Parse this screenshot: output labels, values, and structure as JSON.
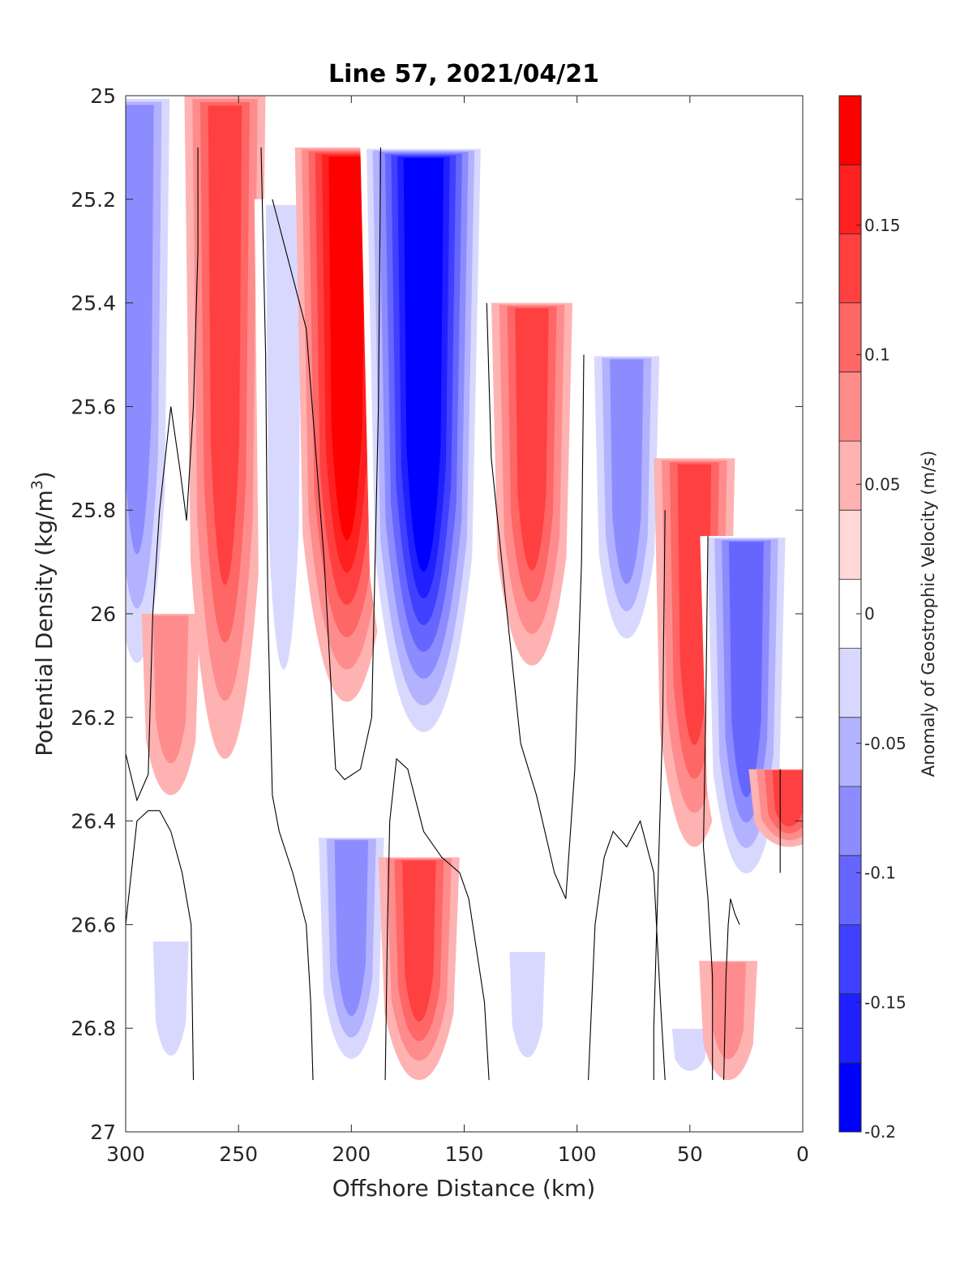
{
  "chart_data": {
    "type": "heatmap",
    "subtype": "filled-contour section",
    "title": "Line 57, 2021/04/21",
    "xlabel": "Offshore Distance (km)",
    "ylabel": "Potential Density (kg/m",
    "ylabel_superscript": "3",
    "ylabel_suffix": ")",
    "xlim": [
      300,
      0
    ],
    "x_reversed": true,
    "ylim": [
      25,
      27
    ],
    "y_reversed": true,
    "xticks": [
      300,
      250,
      200,
      150,
      100,
      50,
      0
    ],
    "xticklabels": [
      "300",
      "250",
      "200",
      "150",
      "100",
      "50",
      "0"
    ],
    "yticks": [
      25,
      25.2,
      25.4,
      25.6,
      25.8,
      26,
      26.2,
      26.4,
      26.6,
      26.8,
      27
    ],
    "yticklabels": [
      "25",
      "25.2",
      "25.4",
      "25.6",
      "25.8",
      "26",
      "26.2",
      "26.4",
      "26.6",
      "26.8",
      "27"
    ],
    "grid": false,
    "colorbar": {
      "label": "Anomaly of Geostrophic Velocity (m/s)",
      "range": [
        -0.2,
        0.2
      ],
      "level_step": 0.025,
      "ticks": [
        0.15,
        0.1,
        0.05,
        0,
        -0.05,
        -0.1,
        -0.15,
        -0.2
      ],
      "ticklabels": [
        "0.15",
        "0.1",
        "0.05",
        "0",
        "-0.05",
        "-0.1",
        "-0.15",
        "-0.2"
      ],
      "colors": [
        "#0000ff",
        "#2020ff",
        "#4040ff",
        "#6666ff",
        "#8c8cff",
        "#b2b2ff",
        "#d8d8ff",
        "#ffffff",
        "#ffd8d8",
        "#ffb2b2",
        "#ff8c8c",
        "#ff6666",
        "#ff4040",
        "#ff2020",
        "#ff0000"
      ]
    },
    "cores": [
      {
        "x": 295,
        "y_top": 25.0,
        "y_bottom": 26.2,
        "peak": -0.08
      },
      {
        "x": 256,
        "y_top": 25.0,
        "y_bottom": 26.28,
        "peak": 0.1
      },
      {
        "x": 280,
        "y_top": 26.0,
        "y_bottom": 26.35,
        "peak": 0.05
      },
      {
        "x": 230,
        "y_top": 25.2,
        "y_bottom": 26.3,
        "peak": -0.05
      },
      {
        "x": 202,
        "y_top": 25.1,
        "y_bottom": 26.17,
        "peak": 0.19
      },
      {
        "x": 168,
        "y_top": 25.1,
        "y_bottom": 26.28,
        "peak": -0.19
      },
      {
        "x": 120,
        "y_top": 25.4,
        "y_bottom": 26.1,
        "peak": 0.12
      },
      {
        "x": 78,
        "y_top": 25.5,
        "y_bottom": 26.1,
        "peak": -0.1
      },
      {
        "x": 48,
        "y_top": 25.7,
        "y_bottom": 26.45,
        "peak": 0.12
      },
      {
        "x": 25,
        "y_top": 25.85,
        "y_bottom": 26.55,
        "peak": -0.12
      },
      {
        "x": 6,
        "y_top": 26.3,
        "y_bottom": 26.45,
        "peak": 0.1
      },
      {
        "x": 280,
        "y_top": 26.63,
        "y_bottom": 26.9,
        "peak": -0.05
      },
      {
        "x": 200,
        "y_top": 26.43,
        "y_bottom": 26.9,
        "peak": -0.1
      },
      {
        "x": 170,
        "y_top": 26.47,
        "y_bottom": 26.9,
        "peak": 0.12
      },
      {
        "x": 122,
        "y_top": 26.65,
        "y_bottom": 26.9,
        "peak": -0.05
      },
      {
        "x": 50,
        "y_top": 26.8,
        "y_bottom": 26.9,
        "peak": -0.05
      },
      {
        "x": 33,
        "y_top": 26.67,
        "y_bottom": 26.9,
        "peak": 0.05
      }
    ],
    "zero_contours": [
      [
        [
          300,
          26.27
        ],
        [
          295,
          26.36
        ],
        [
          290,
          26.31
        ],
        [
          288,
          26.0
        ],
        [
          285,
          25.8
        ],
        [
          280,
          25.6
        ],
        [
          276,
          25.72
        ],
        [
          273,
          25.82
        ],
        [
          270,
          25.6
        ],
        [
          268,
          25.3
        ],
        [
          268,
          25.1
        ]
      ],
      [
        [
          240,
          25.1
        ],
        [
          238,
          25.5
        ],
        [
          237,
          26.0
        ],
        [
          235,
          26.35
        ],
        [
          232,
          26.42
        ],
        [
          226,
          26.5
        ],
        [
          220,
          26.6
        ],
        [
          218,
          26.75
        ],
        [
          217,
          26.9
        ]
      ],
      [
        [
          235,
          25.2
        ],
        [
          220,
          25.45
        ],
        [
          212,
          25.9
        ],
        [
          207,
          26.3
        ],
        [
          203,
          26.32
        ],
        [
          196,
          26.3
        ],
        [
          191,
          26.2
        ],
        [
          188,
          25.6
        ],
        [
          187,
          25.1
        ]
      ],
      [
        [
          185,
          26.9
        ],
        [
          184,
          26.6
        ],
        [
          183,
          26.4
        ],
        [
          180,
          26.28
        ],
        [
          175,
          26.3
        ],
        [
          168,
          26.42
        ],
        [
          160,
          26.47
        ],
        [
          152,
          26.5
        ],
        [
          148,
          26.55
        ],
        [
          141,
          26.75
        ],
        [
          139,
          26.9
        ]
      ],
      [
        [
          140,
          25.4
        ],
        [
          138,
          25.7
        ],
        [
          131,
          26.0
        ],
        [
          125,
          26.25
        ],
        [
          118,
          26.35
        ],
        [
          110,
          26.5
        ],
        [
          105,
          26.55
        ],
        [
          101,
          26.3
        ],
        [
          98,
          25.9
        ],
        [
          97,
          25.5
        ]
      ],
      [
        [
          270,
          26.9
        ],
        [
          271,
          26.6
        ],
        [
          275,
          26.5
        ],
        [
          280,
          26.42
        ],
        [
          285,
          26.38
        ],
        [
          290,
          26.38
        ],
        [
          295,
          26.4
        ],
        [
          300,
          26.6
        ],
        [
          302,
          26.9
        ]
      ],
      [
        [
          95,
          26.9
        ],
        [
          92,
          26.6
        ],
        [
          88,
          26.47
        ],
        [
          84,
          26.42
        ],
        [
          78,
          26.45
        ],
        [
          72,
          26.4
        ],
        [
          66,
          26.5
        ],
        [
          63,
          26.75
        ],
        [
          61,
          26.9
        ]
      ],
      [
        [
          61,
          25.8
        ],
        [
          62,
          26.2
        ],
        [
          64,
          26.5
        ],
        [
          66,
          26.8
        ],
        [
          66,
          26.9
        ]
      ],
      [
        [
          42,
          25.85
        ],
        [
          43,
          26.2
        ],
        [
          44,
          26.45
        ],
        [
          42,
          26.55
        ],
        [
          40,
          26.7
        ],
        [
          40,
          26.9
        ]
      ],
      [
        [
          35,
          26.9
        ],
        [
          34,
          26.7
        ],
        [
          33,
          26.6
        ],
        [
          32,
          26.55
        ],
        [
          30,
          26.58
        ],
        [
          28,
          26.6
        ]
      ],
      [
        [
          10,
          26.3
        ],
        [
          10,
          26.5
        ]
      ]
    ]
  }
}
